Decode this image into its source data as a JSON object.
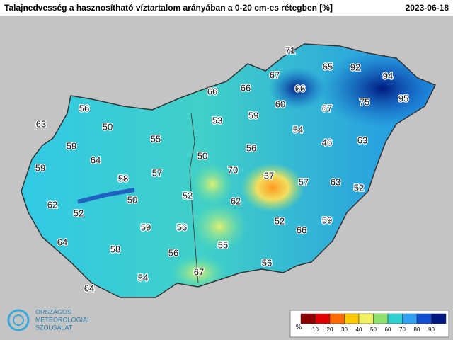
{
  "title": "Talajnedvesség a hasznosítható víztartalom arányában a 0-20 cm-es rétegben [%]",
  "date": "2023-06-18",
  "labels": [
    71,
    65,
    92,
    94,
    95,
    67,
    66,
    66,
    66,
    60,
    67,
    75,
    56,
    63,
    50,
    53,
    59,
    54,
    55,
    56,
    46,
    63,
    59,
    64,
    50,
    59,
    58,
    57,
    70,
    37,
    57,
    63,
    52,
    62,
    52,
    50,
    52,
    62,
    59,
    56,
    52,
    66,
    59,
    64,
    58,
    55,
    56,
    67,
    56,
    54,
    64
  ],
  "legend": {
    "unit": "%",
    "ticks": [
      10,
      20,
      30,
      40,
      50,
      60,
      70,
      80,
      90
    ],
    "colors": [
      "#8b0000",
      "#e00000",
      "#ff6a00",
      "#ffc800",
      "#f0f060",
      "#90e070",
      "#30d0d0",
      "#30a0f0",
      "#1050d0",
      "#001880"
    ]
  },
  "logo": {
    "lines": [
      "ORSZÁGOS",
      "METEOROLÓGIAI",
      "SZOLGÁLAT"
    ]
  }
}
